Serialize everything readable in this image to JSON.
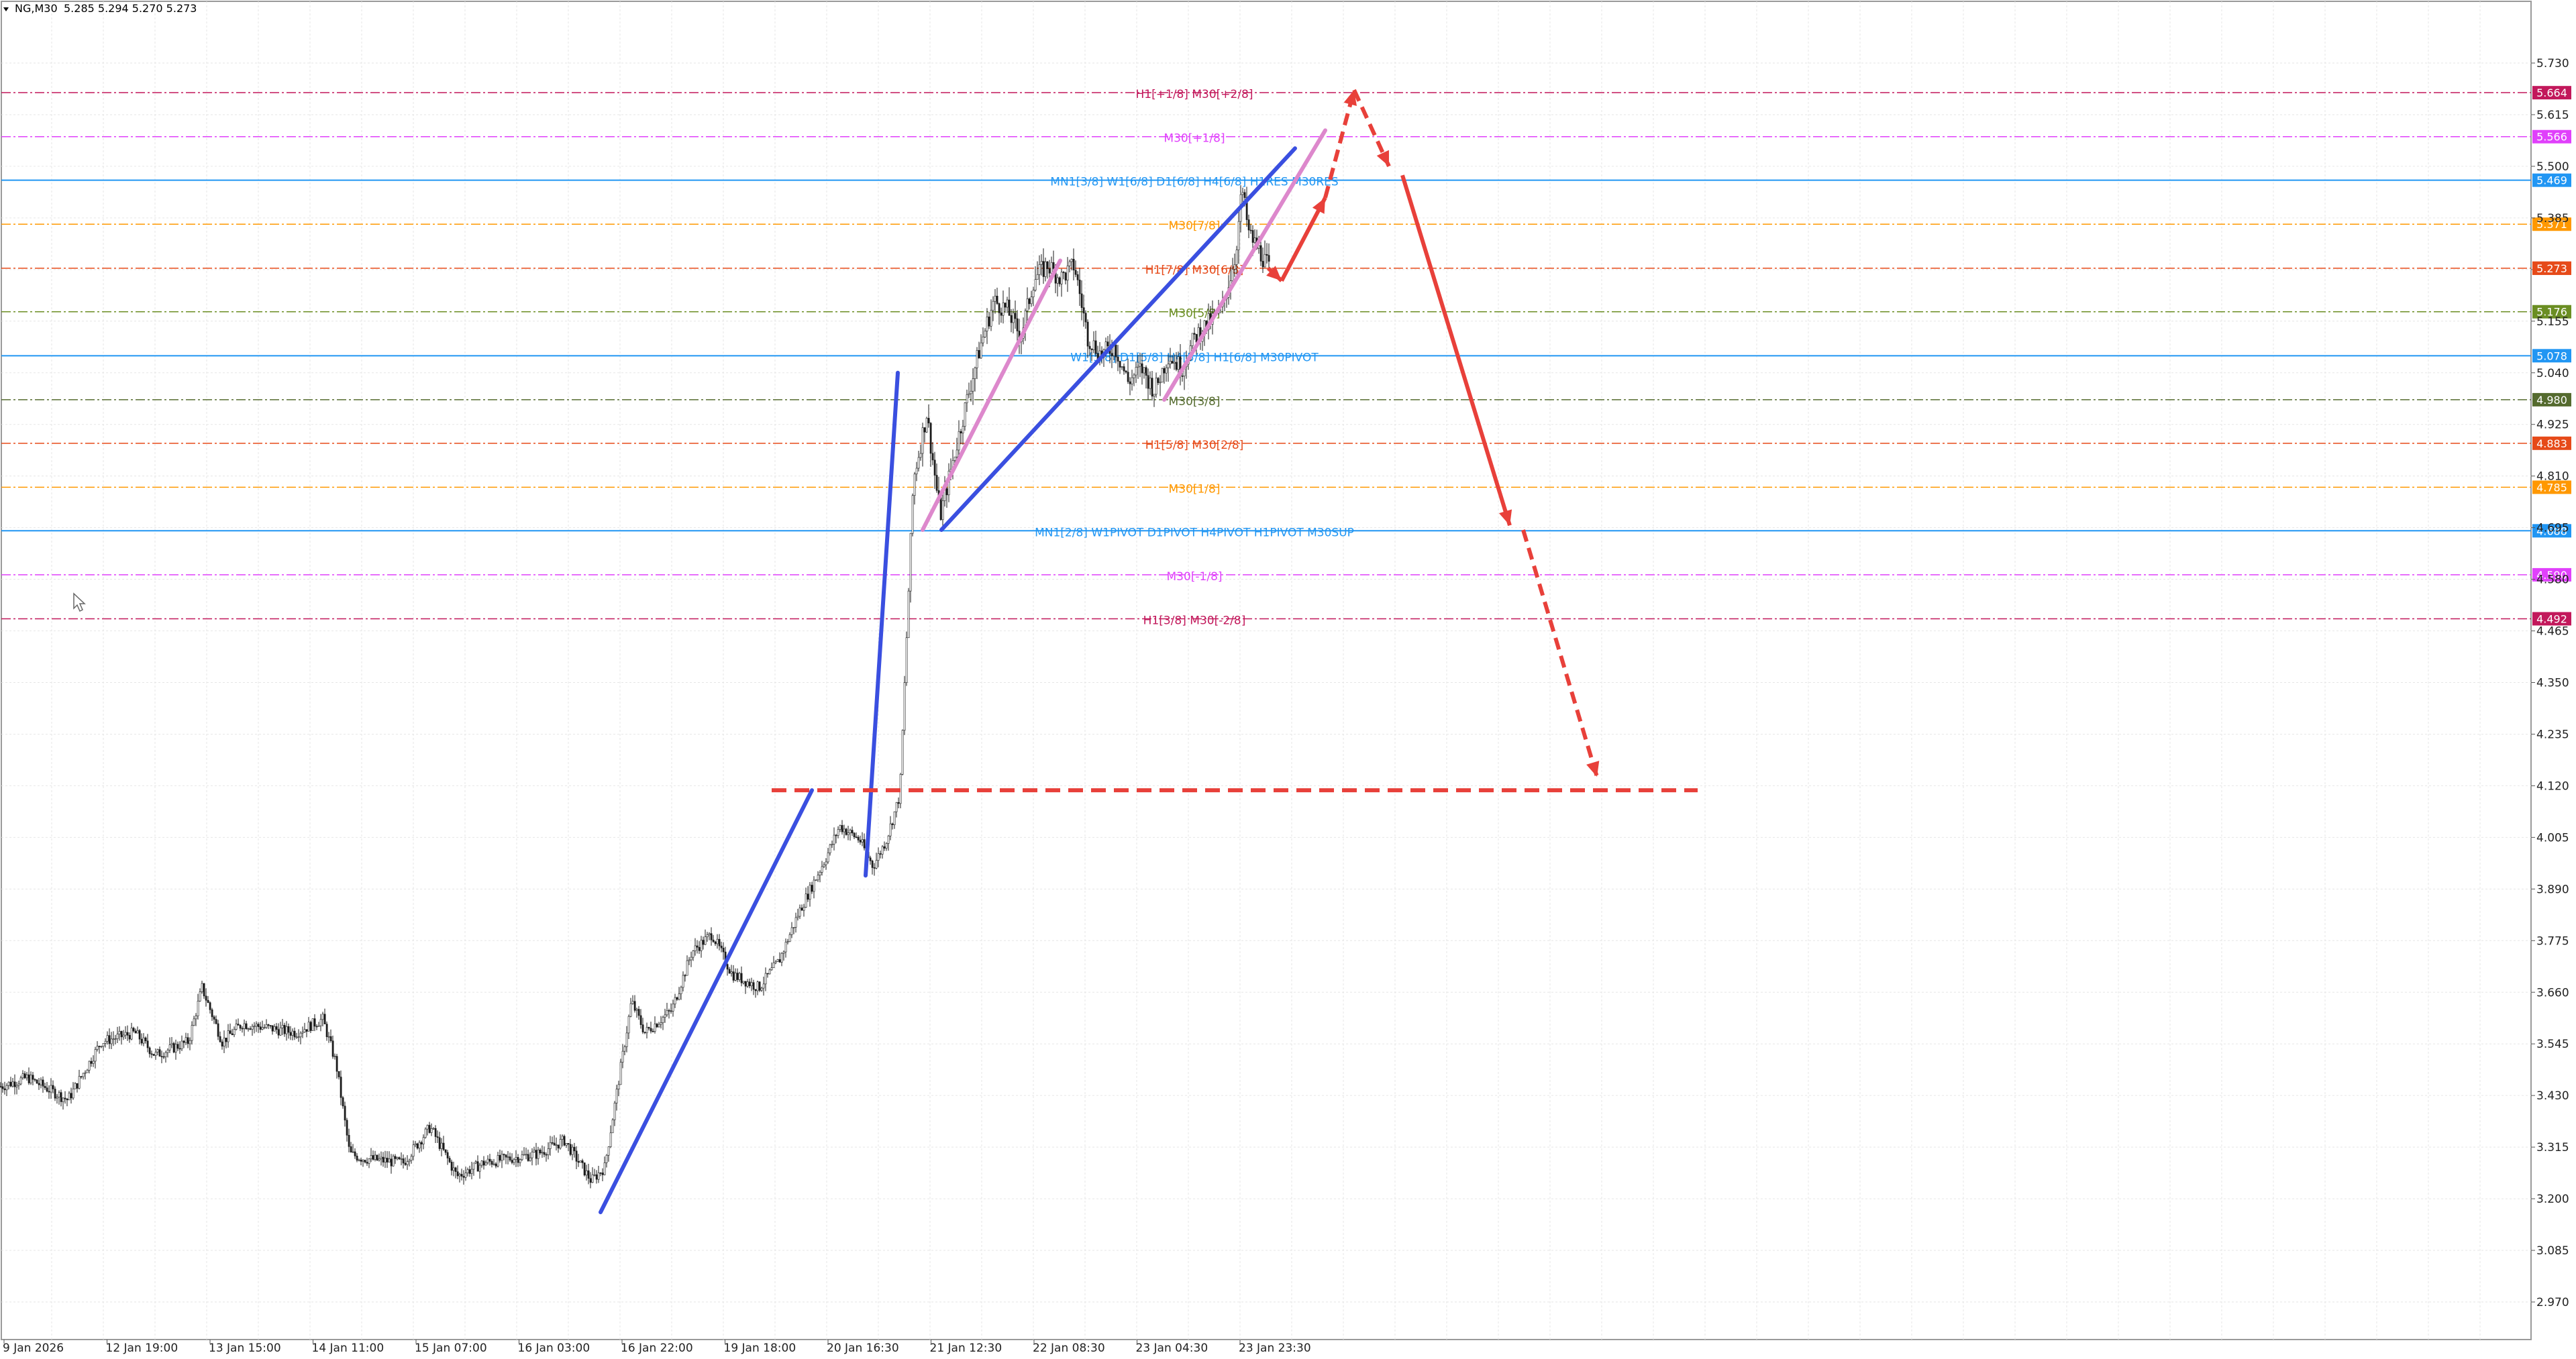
{
  "header": {
    "symbol": "NG,M30",
    "ohlc": "5.285 5.294 5.270 5.273"
  },
  "chart_data": {
    "type": "line",
    "title": "NG,M30",
    "y_range": [
      2.9,
      5.79
    ],
    "y_ticks": [
      5.73,
      5.615,
      5.5,
      5.385,
      5.27,
      5.155,
      5.04,
      4.925,
      4.81,
      4.695,
      4.58,
      4.465,
      4.35,
      4.235,
      4.12,
      4.005,
      3.89,
      3.775,
      3.66,
      3.545,
      3.43,
      3.315,
      3.2,
      3.085,
      2.97
    ],
    "x_labels": [
      "9 Jan 2026",
      "12 Jan 19:00",
      "13 Jan 15:00",
      "14 Jan 11:00",
      "15 Jan 07:00",
      "16 Jan 03:00",
      "16 Jan 22:00",
      "19 Jan 18:00",
      "20 Jan 16:30",
      "21 Jan 12:30",
      "22 Jan 08:30",
      "23 Jan 04:30",
      "23 Jan 23:30"
    ],
    "price_levels": [
      {
        "value": 5.664,
        "label": "H1[+1/8] M30[+2/8]",
        "color": "#c2185b",
        "style": "dashdot"
      },
      {
        "value": 5.566,
        "label": "M30[+1/8]",
        "color": "#e040fb",
        "style": "dashdot"
      },
      {
        "value": 5.469,
        "label": "MN1[3/8] W1[6/8] D1[6/8] H4[6/8] H1RES M30RES",
        "color": "#2196f3",
        "style": "solid"
      },
      {
        "value": 5.371,
        "label": "M30[7/8]",
        "color": "#ff9800",
        "style": "dashdot"
      },
      {
        "value": 5.273,
        "label": "H1[7/8] M30[6/8]",
        "color": "#e64a19",
        "style": "dashdot"
      },
      {
        "value": 5.176,
        "label": "M30[5/8]",
        "color": "#6b8e23",
        "style": "dashdot"
      },
      {
        "value": 5.078,
        "label": "W1[5/8] D1[5/8] H4[5/8] H1[6/8] M30PIVOT",
        "color": "#2196f3",
        "style": "solid"
      },
      {
        "value": 4.98,
        "label": "M30[3/8]",
        "color": "#556b2f",
        "style": "dashdot"
      },
      {
        "value": 4.883,
        "label": "H1[5/8] M30[2/8]",
        "color": "#e64a19",
        "style": "dashdot"
      },
      {
        "value": 4.785,
        "label": "M30[1/8]",
        "color": "#ff9800",
        "style": "dashdot"
      },
      {
        "value": 4.688,
        "label": "MN1[2/8] W1PIVOT D1PIVOT H4PIVOT H1PIVOT M30SUP",
        "color": "#2196f3",
        "style": "solid"
      },
      {
        "value": 4.59,
        "label": "M30[-1/8]",
        "color": "#e040fb",
        "style": "dashdot"
      },
      {
        "value": 4.492,
        "label": "H1[3/8] M30[-2/8]",
        "color": "#c2185b",
        "style": "dashdot"
      }
    ],
    "price_series": {
      "name": "NG",
      "knots": [
        [
          0,
          3.45
        ],
        [
          40,
          3.47
        ],
        [
          100,
          3.42
        ],
        [
          150,
          3.55
        ],
        [
          200,
          3.57
        ],
        [
          230,
          3.52
        ],
        [
          280,
          3.55
        ],
        [
          300,
          3.67
        ],
        [
          330,
          3.55
        ],
        [
          360,
          3.59
        ],
        [
          400,
          3.58
        ],
        [
          440,
          3.57
        ],
        [
          480,
          3.6
        ],
        [
          500,
          3.5
        ],
        [
          520,
          3.3
        ],
        [
          540,
          3.29
        ],
        [
          600,
          3.28
        ],
        [
          640,
          3.36
        ],
        [
          680,
          3.25
        ],
        [
          720,
          3.28
        ],
        [
          800,
          3.3
        ],
        [
          840,
          3.33
        ],
        [
          880,
          3.24
        ],
        [
          900,
          3.27
        ],
        [
          940,
          3.64
        ],
        [
          960,
          3.57
        ],
        [
          1000,
          3.62
        ],
        [
          1030,
          3.75
        ],
        [
          1060,
          3.79
        ],
        [
          1090,
          3.7
        ],
        [
          1130,
          3.67
        ],
        [
          1160,
          3.73
        ],
        [
          1190,
          3.84
        ],
        [
          1230,
          3.96
        ],
        [
          1250,
          4.03
        ],
        [
          1280,
          4.0
        ],
        [
          1300,
          3.94
        ],
        [
          1320,
          4.0
        ],
        [
          1340,
          4.1
        ],
        [
          1360,
          4.8
        ],
        [
          1380,
          4.95
        ],
        [
          1400,
          4.72
        ],
        [
          1420,
          4.85
        ],
        [
          1440,
          4.98
        ],
        [
          1460,
          5.1
        ],
        [
          1480,
          5.2
        ],
        [
          1500,
          5.18
        ],
        [
          1520,
          5.12
        ],
        [
          1540,
          5.25
        ],
        [
          1560,
          5.28
        ],
        [
          1580,
          5.25
        ],
        [
          1600,
          5.28
        ],
        [
          1620,
          5.12
        ],
        [
          1640,
          5.08
        ],
        [
          1660,
          5.1
        ],
        [
          1680,
          5.02
        ],
        [
          1700,
          5.05
        ],
        [
          1720,
          5.0
        ],
        [
          1740,
          5.08
        ],
        [
          1760,
          5.05
        ],
        [
          1780,
          5.12
        ],
        [
          1800,
          5.15
        ],
        [
          1820,
          5.18
        ],
        [
          1840,
          5.3
        ],
        [
          1850,
          5.45
        ],
        [
          1860,
          5.35
        ],
        [
          1880,
          5.3
        ],
        [
          1890,
          5.273
        ]
      ]
    },
    "blue_lines": [
      {
        "points": [
          [
            895,
            3.17
          ],
          [
            1210,
            4.11
          ]
        ]
      },
      {
        "points": [
          [
            1290,
            3.92
          ],
          [
            1338,
            5.04
          ]
        ]
      },
      {
        "points": [
          [
            1403,
            4.69
          ],
          [
            1930,
            5.54
          ]
        ]
      }
    ],
    "pink_lines": [
      {
        "points": [
          [
            1375,
            4.69
          ],
          [
            1580,
            5.29
          ]
        ]
      },
      {
        "points": [
          [
            1735,
            4.98
          ],
          [
            1975,
            5.58
          ]
        ]
      }
    ],
    "projection": {
      "solid": [
        [
          1890,
          5.273
        ],
        [
          1910,
          5.245
        ],
        [
          1975,
          5.43
        ]
      ],
      "dashed_up": [
        [
          1975,
          5.43
        ],
        [
          2018,
          5.67
        ]
      ],
      "dashed_pullback": [
        [
          2018,
          5.67
        ],
        [
          2070,
          5.5
        ]
      ],
      "solid_down": [
        [
          2090,
          5.48
        ],
        [
          2250,
          4.7
        ]
      ],
      "dashed_down": [
        [
          2270,
          4.69
        ],
        [
          2380,
          4.14
        ]
      ],
      "target": 4.11,
      "target_from": 1150,
      "target_to": 2530
    },
    "colors": {
      "background": "#ffffff",
      "grid": "#e6e6e6",
      "candles": "#1a1a1a",
      "channel_blue": "#3a4fe0",
      "channel_pink": "#dd88cc",
      "projection_red": "#e8403a",
      "current_price_tag": "#e64a19"
    },
    "grid": true
  }
}
